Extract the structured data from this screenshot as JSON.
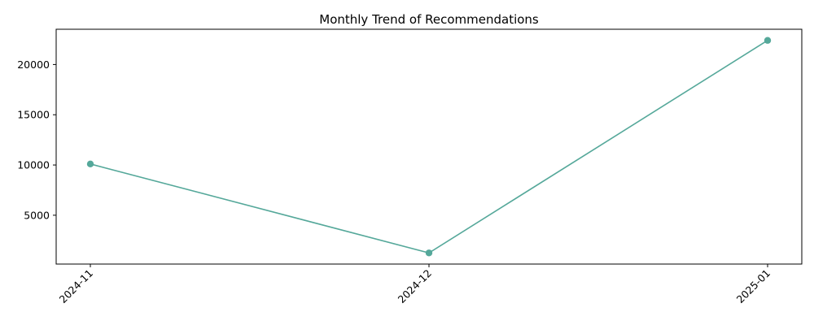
{
  "chart_data": {
    "type": "line",
    "title": "Monthly Trend of Recommendations",
    "xlabel": "",
    "ylabel": "",
    "categories": [
      "2024-11",
      "2024-12",
      "2025-01"
    ],
    "series": [
      {
        "values": [
          10100,
          1250,
          22400
        ],
        "color": "#55a89a",
        "marker": "circle"
      }
    ],
    "yticks": [
      5000,
      10000,
      15000,
      20000
    ],
    "ylim": [
      140,
      23510
    ],
    "grid": false,
    "legend": "none"
  }
}
